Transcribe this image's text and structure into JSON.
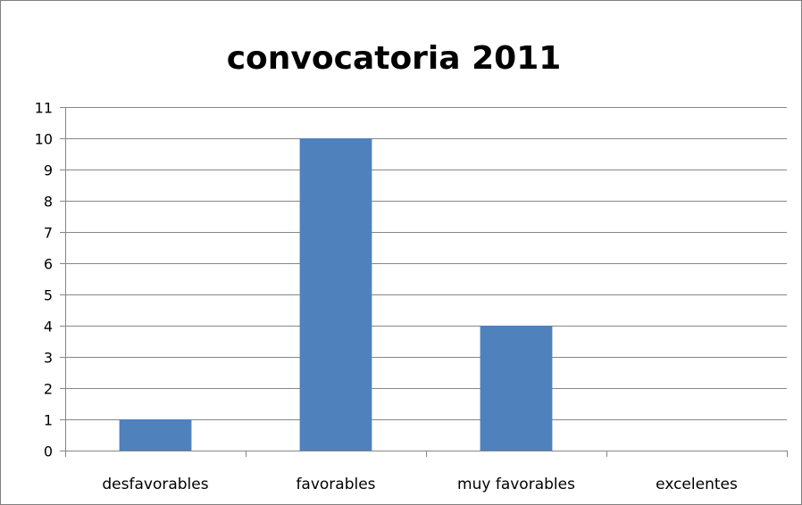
{
  "chart_data": {
    "type": "bar",
    "title": "convocatoria 2011",
    "categories": [
      "desfavorables",
      "favorables",
      "muy favorables",
      "excelentes"
    ],
    "values": [
      1,
      10,
      4,
      0
    ],
    "ylim": [
      0,
      11
    ],
    "yticks": [
      0,
      1,
      2,
      3,
      4,
      5,
      6,
      7,
      8,
      9,
      10,
      11
    ],
    "grid": true,
    "legend": "none",
    "colors": {
      "bar": "#4f81bd",
      "grid": "#868686",
      "axis": "#868686"
    }
  }
}
